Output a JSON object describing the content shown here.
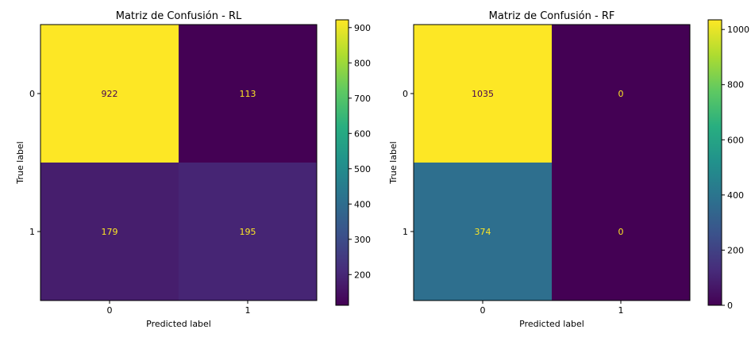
{
  "chart_data": [
    {
      "type": "heatmap",
      "title": "Matriz de Confusión - RL",
      "xlabel": "Predicted label",
      "ylabel": "True label",
      "x_categories": [
        "0",
        "1"
      ],
      "y_categories": [
        "0",
        "1"
      ],
      "values": [
        [
          922,
          113
        ],
        [
          179,
          195
        ]
      ],
      "colormap": "viridis",
      "color_range": [
        113,
        922
      ],
      "colorbar_ticks": [
        200,
        300,
        400,
        500,
        600,
        700,
        800,
        900
      ],
      "grid": false
    },
    {
      "type": "heatmap",
      "title": "Matriz de Confusión - RF",
      "xlabel": "Predicted label",
      "ylabel": "True label",
      "x_categories": [
        "0",
        "1"
      ],
      "y_categories": [
        "0",
        "1"
      ],
      "values": [
        [
          1035,
          0
        ],
        [
          374,
          0
        ]
      ],
      "colormap": "viridis",
      "color_range": [
        0,
        1035
      ],
      "colorbar_ticks": [
        0,
        200,
        400,
        600,
        800,
        1000
      ],
      "grid": false
    }
  ]
}
